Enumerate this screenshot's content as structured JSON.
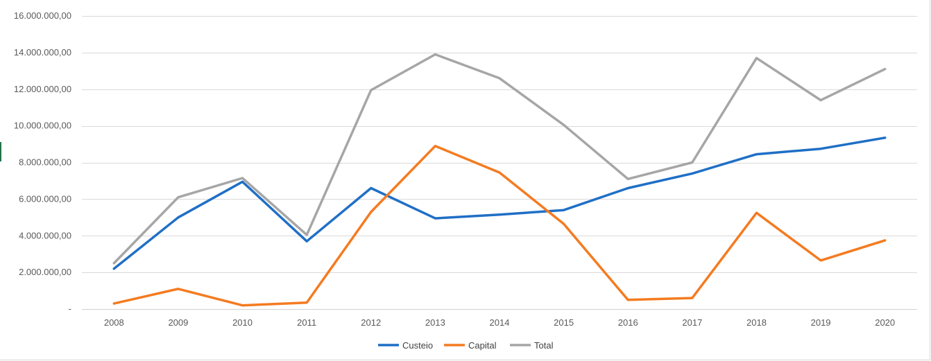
{
  "chart_data": {
    "type": "line",
    "title": "",
    "xlabel": "",
    "ylabel": "",
    "categories": [
      "2008",
      "2009",
      "2010",
      "2011",
      "2012",
      "2013",
      "2014",
      "2015",
      "2016",
      "2017",
      "2018",
      "2019",
      "2020"
    ],
    "ylim": [
      0,
      16000000
    ],
    "y_ticks": [
      0,
      2000000,
      4000000,
      6000000,
      8000000,
      10000000,
      12000000,
      14000000,
      16000000
    ],
    "y_tick_labels": [
      "-",
      "2.000.000,00",
      "4.000.000,00",
      "6.000.000,00",
      "8.000.000,00",
      "10.000.000,00",
      "12.000.000,00",
      "14.000.000,00",
      "16.000.000,00"
    ],
    "grid": true,
    "legend_position": "bottom",
    "series": [
      {
        "name": "Custeio",
        "color": "#1f6fc6",
        "values": [
          2200000,
          5000000,
          6950000,
          3700000,
          6600000,
          4950000,
          5150000,
          5400000,
          6600000,
          7400000,
          8450000,
          8750000,
          9350000
        ]
      },
      {
        "name": "Capital",
        "color": "#f47b20",
        "values": [
          300000,
          1100000,
          200000,
          350000,
          5300000,
          8900000,
          7450000,
          4650000,
          500000,
          600000,
          5250000,
          2650000,
          3750000
        ]
      },
      {
        "name": "Total",
        "color": "#a6a6a6",
        "values": [
          2500000,
          6100000,
          7150000,
          4050000,
          11950000,
          13900000,
          12600000,
          10050000,
          7100000,
          8000000,
          13700000,
          11400000,
          13100000
        ]
      }
    ]
  }
}
